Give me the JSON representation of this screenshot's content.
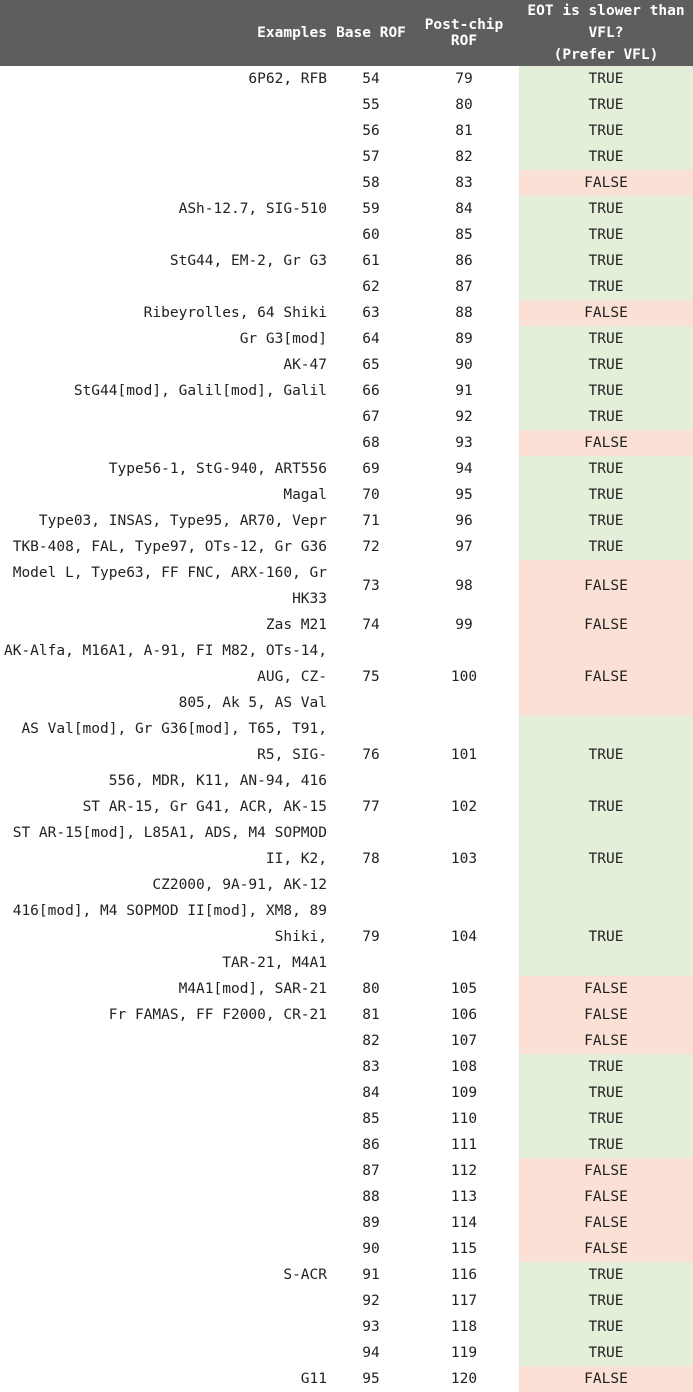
{
  "headers": {
    "examples": "Examples",
    "base_rof": "Base ROF",
    "post_chip_rof": "Post-chip ROF",
    "eot_line1": "EOT is slower than VFL?",
    "eot_line2": "(Prefer VFL)"
  },
  "colors": {
    "header_bg": "#5e5e5e",
    "true_bg": "#e3efd9",
    "false_bg": "#fbe0d6"
  },
  "rows": [
    {
      "examples": "6P62, RFB",
      "base": "54",
      "post": "79",
      "eot": "TRUE"
    },
    {
      "examples": "",
      "base": "55",
      "post": "80",
      "eot": "TRUE"
    },
    {
      "examples": "",
      "base": "56",
      "post": "81",
      "eot": "TRUE"
    },
    {
      "examples": "",
      "base": "57",
      "post": "82",
      "eot": "TRUE"
    },
    {
      "examples": "",
      "base": "58",
      "post": "83",
      "eot": "FALSE"
    },
    {
      "examples": "ASh-12.7, SIG-510",
      "base": "59",
      "post": "84",
      "eot": "TRUE"
    },
    {
      "examples": "",
      "base": "60",
      "post": "85",
      "eot": "TRUE"
    },
    {
      "examples": "StG44, EM-2, Gr G3",
      "base": "61",
      "post": "86",
      "eot": "TRUE"
    },
    {
      "examples": "",
      "base": "62",
      "post": "87",
      "eot": "TRUE"
    },
    {
      "examples": "Ribeyrolles, 64 Shiki",
      "base": "63",
      "post": "88",
      "eot": "FALSE"
    },
    {
      "examples": "Gr G3[mod]",
      "base": "64",
      "post": "89",
      "eot": "TRUE"
    },
    {
      "examples": "AK-47",
      "base": "65",
      "post": "90",
      "eot": "TRUE"
    },
    {
      "examples": "StG44[mod], Galil[mod], Galil",
      "base": "66",
      "post": "91",
      "eot": "TRUE"
    },
    {
      "examples": "",
      "base": "67",
      "post": "92",
      "eot": "TRUE"
    },
    {
      "examples": "",
      "base": "68",
      "post": "93",
      "eot": "FALSE"
    },
    {
      "examples": "Type56-1, StG-940, ART556",
      "base": "69",
      "post": "94",
      "eot": "TRUE"
    },
    {
      "examples": "Magal",
      "base": "70",
      "post": "95",
      "eot": "TRUE"
    },
    {
      "examples": "Type03, INSAS, Type95, AR70, Vepr",
      "base": "71",
      "post": "96",
      "eot": "TRUE"
    },
    {
      "examples": "TKB-408, FAL, Type97, OTs-12, Gr G36",
      "base": "72",
      "post": "97",
      "eot": "TRUE"
    },
    {
      "examples": "Model L, Type63, FF FNC, ARX-160, Gr HK33",
      "base": "73",
      "post": "98",
      "eot": "FALSE"
    },
    {
      "examples": "Zas M21",
      "base": "74",
      "post": "99",
      "eot": "FALSE"
    },
    {
      "examples": "AK-Alfa, M16A1, A-91, FI M82, OTs-14, AUG, CZ-",
      "examples2": "805, Ak 5, AS Val",
      "base": "75",
      "post": "100",
      "eot": "FALSE",
      "tall": true
    },
    {
      "examples": "AS Val[mod], Gr G36[mod], T65, T91, R5, SIG-",
      "examples2": "556, MDR, K11, AN-94, 416",
      "base": "76",
      "post": "101",
      "eot": "TRUE",
      "tall": true
    },
    {
      "examples": "ST AR-15, Gr G41, ACR, AK-15",
      "base": "77",
      "post": "102",
      "eot": "TRUE"
    },
    {
      "examples": "ST AR-15[mod], L85A1, ADS, M4 SOPMOD II, K2,",
      "examples2": "CZ2000, 9A-91, AK-12",
      "base": "78",
      "post": "103",
      "eot": "TRUE",
      "tall": true
    },
    {
      "examples": "416[mod], M4 SOPMOD II[mod], XM8, 89 Shiki,",
      "examples2": "TAR-21, M4A1",
      "base": "79",
      "post": "104",
      "eot": "TRUE",
      "tall": true
    },
    {
      "examples": "M4A1[mod], SAR-21",
      "base": "80",
      "post": "105",
      "eot": "FALSE"
    },
    {
      "examples": "Fr FAMAS, FF F2000, CR-21",
      "base": "81",
      "post": "106",
      "eot": "FALSE"
    },
    {
      "examples": "",
      "base": "82",
      "post": "107",
      "eot": "FALSE"
    },
    {
      "examples": "",
      "base": "83",
      "post": "108",
      "eot": "TRUE"
    },
    {
      "examples": "",
      "base": "84",
      "post": "109",
      "eot": "TRUE"
    },
    {
      "examples": "",
      "base": "85",
      "post": "110",
      "eot": "TRUE"
    },
    {
      "examples": "",
      "base": "86",
      "post": "111",
      "eot": "TRUE"
    },
    {
      "examples": "",
      "base": "87",
      "post": "112",
      "eot": "FALSE"
    },
    {
      "examples": "",
      "base": "88",
      "post": "113",
      "eot": "FALSE"
    },
    {
      "examples": "",
      "base": "89",
      "post": "114",
      "eot": "FALSE"
    },
    {
      "examples": "",
      "base": "90",
      "post": "115",
      "eot": "FALSE"
    },
    {
      "examples": "S-ACR",
      "base": "91",
      "post": "116",
      "eot": "TRUE"
    },
    {
      "examples": "",
      "base": "92",
      "post": "117",
      "eot": "TRUE"
    },
    {
      "examples": "",
      "base": "93",
      "post": "118",
      "eot": "TRUE"
    },
    {
      "examples": "",
      "base": "94",
      "post": "119",
      "eot": "TRUE"
    },
    {
      "examples": "G11",
      "base": "95",
      "post": "120",
      "eot": "FALSE"
    }
  ]
}
